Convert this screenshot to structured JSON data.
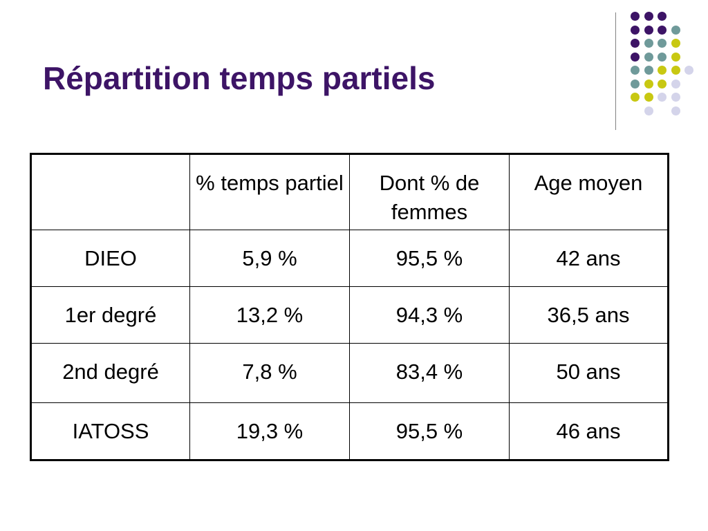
{
  "slide": {
    "title": "Répartition temps partiels"
  },
  "colors": {
    "title": "#3d1466",
    "dot_purple": "#3d1466",
    "dot_teal": "#6f9a9a",
    "dot_yellow": "#c8c812",
    "dot_lavender": "#d4d4ea"
  },
  "decoration": {
    "dot_grid": [
      [
        "purple",
        "purple",
        "purple",
        "",
        ""
      ],
      [
        "purple",
        "purple",
        "purple",
        "teal",
        ""
      ],
      [
        "purple",
        "teal",
        "teal",
        "yellow",
        ""
      ],
      [
        "purple",
        "teal",
        "teal",
        "yellow",
        ""
      ],
      [
        "teal",
        "teal",
        "yellow",
        "yellow",
        "lavender"
      ],
      [
        "teal",
        "yellow",
        "yellow",
        "lavender",
        ""
      ],
      [
        "yellow",
        "yellow",
        "lavender",
        "lavender",
        ""
      ],
      [
        "",
        "lavender",
        "",
        "lavender",
        ""
      ]
    ]
  },
  "table": {
    "headers": [
      "",
      "% temps partiel",
      "Dont % de femmes",
      "Age moyen"
    ],
    "rows": [
      [
        "DIEO",
        "5,9 %",
        "95,5 %",
        "42 ans"
      ],
      [
        "1er degré",
        "13,2 %",
        "94,3 %",
        "36,5 ans"
      ],
      [
        "2nd degré",
        "7,8 %",
        "83,4 %",
        "50 ans"
      ],
      [
        "IATOSS",
        "19,3  %",
        "95,5 %",
        "46 ans"
      ]
    ]
  }
}
